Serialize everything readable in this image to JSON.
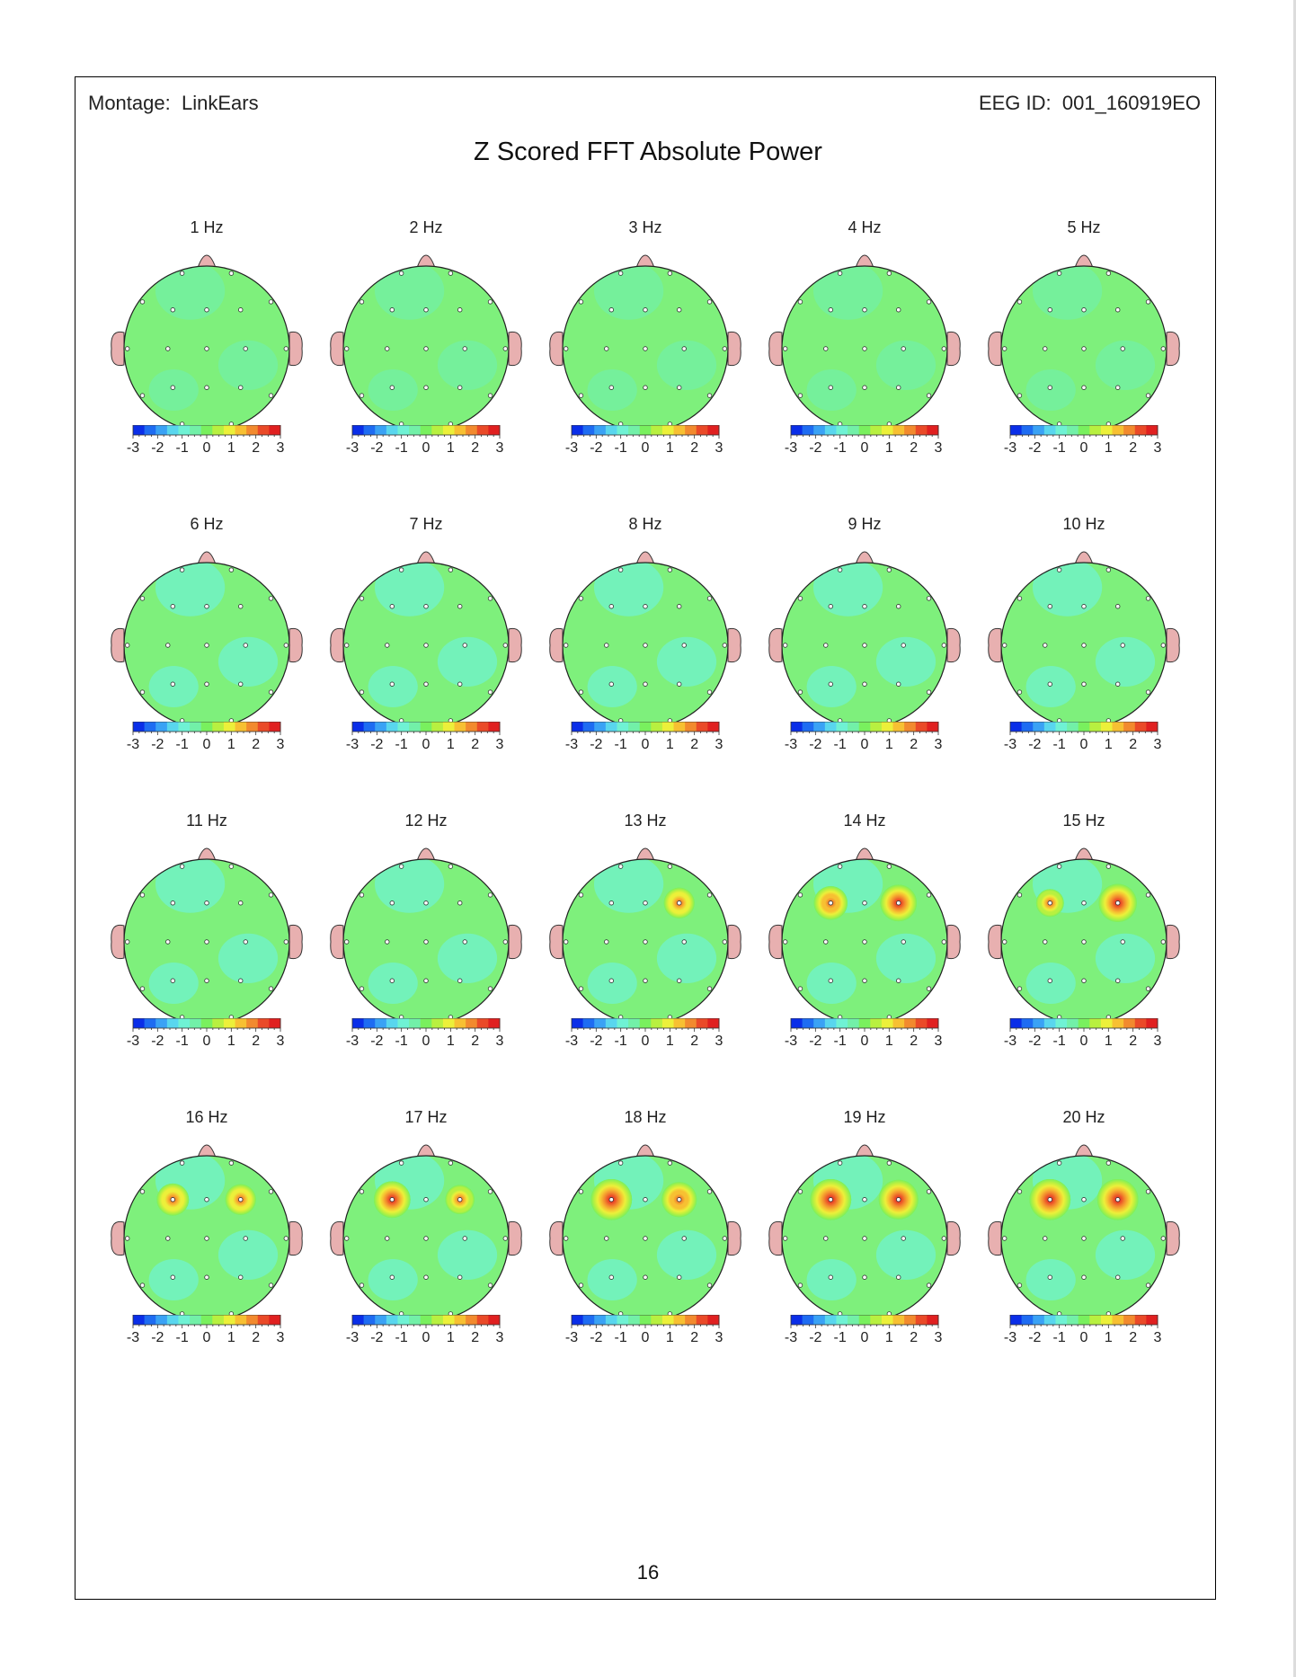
{
  "header": {
    "montage_label": "Montage:",
    "montage_value": "LinkEars",
    "eeg_id_label": "EEG ID:",
    "eeg_id_value": "001_160919EO"
  },
  "title": "Z Scored FFT Absolute Power",
  "page_number": "16",
  "colors": {
    "scale": [
      "#0a2ee8",
      "#1e6cf2",
      "#3aa2f5",
      "#59d6ee",
      "#6ff2d4",
      "#72f0a8",
      "#79f05e",
      "#b8f040",
      "#ecf03a",
      "#f7c032",
      "#f28a2e",
      "#ea4a28",
      "#e02020"
    ],
    "ear": "#e8b0b0",
    "electrode": "#ffffff"
  },
  "colorbar": {
    "ticks": [
      "-3",
      "-2",
      "-1",
      "0",
      "1",
      "2",
      "3"
    ]
  },
  "maps": [
    {
      "label": "1 Hz",
      "hot": []
    },
    {
      "label": "2 Hz",
      "hot": []
    },
    {
      "label": "3 Hz",
      "hot": []
    },
    {
      "label": "4 Hz",
      "hot": []
    },
    {
      "label": "5 Hz",
      "hot": []
    },
    {
      "label": "6 Hz",
      "hot": []
    },
    {
      "label": "7 Hz",
      "hot": []
    },
    {
      "label": "8 Hz",
      "hot": []
    },
    {
      "label": "9 Hz",
      "hot": []
    },
    {
      "label": "10 Hz",
      "hot": []
    },
    {
      "label": "11 Hz",
      "hot": []
    },
    {
      "label": "12 Hz",
      "hot": []
    },
    {
      "label": "13 Hz",
      "hot": [
        {
          "site": "F4",
          "z": 2.3
        }
      ]
    },
    {
      "label": "14 Hz",
      "hot": [
        {
          "site": "F3",
          "z": 2.5
        },
        {
          "site": "F4",
          "z": 2.7
        }
      ]
    },
    {
      "label": "15 Hz",
      "hot": [
        {
          "site": "F3",
          "z": 2.1
        },
        {
          "site": "F4",
          "z": 2.8
        }
      ]
    },
    {
      "label": "16 Hz",
      "hot": [
        {
          "site": "F3",
          "z": 2.4
        },
        {
          "site": "F4",
          "z": 2.3
        }
      ]
    },
    {
      "label": "17 Hz",
      "hot": [
        {
          "site": "F3",
          "z": 2.7
        },
        {
          "site": "F4",
          "z": 2.2
        }
      ]
    },
    {
      "label": "18 Hz",
      "hot": [
        {
          "site": "F3",
          "z": 3.0
        },
        {
          "site": "F4",
          "z": 2.6
        }
      ]
    },
    {
      "label": "19 Hz",
      "hot": [
        {
          "site": "F3",
          "z": 3.0
        },
        {
          "site": "F4",
          "z": 2.9
        }
      ]
    },
    {
      "label": "20 Hz",
      "hot": [
        {
          "site": "F3",
          "z": 3.0
        },
        {
          "site": "F4",
          "z": 3.0
        }
      ]
    }
  ]
}
